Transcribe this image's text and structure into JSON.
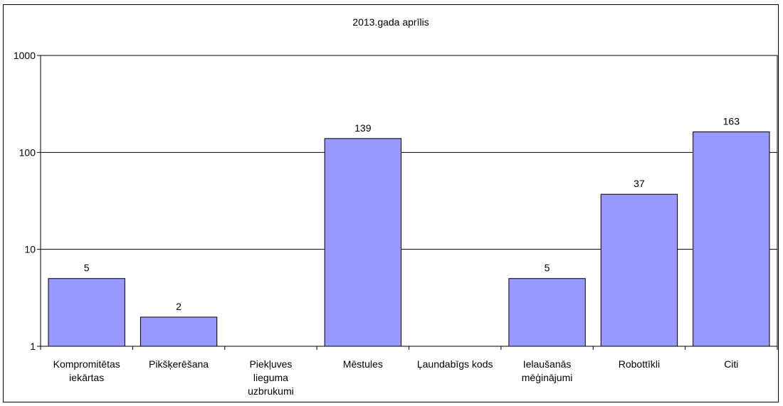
{
  "chart_data": {
    "type": "bar",
    "title": "2013.gada aprīlis",
    "xlabel": "",
    "ylabel": "",
    "y_scale": "log",
    "ylim": [
      1,
      1000
    ],
    "yticks": [
      "1",
      "10",
      "100",
      "1000"
    ],
    "grid": true,
    "legend": "none",
    "bar_color": "#9999ff",
    "categories": [
      [
        "Kompromitētas",
        "iekārtas"
      ],
      [
        "Pikšķerēšana"
      ],
      [
        "Piekļuves",
        "lieguma",
        "uzbrukumi"
      ],
      [
        "Mēstules"
      ],
      [
        "Ļaundabīgs kods"
      ],
      [
        "Ielaušanās",
        "mēģinājumi"
      ],
      [
        "Robottīkli"
      ],
      [
        "Citi"
      ]
    ],
    "values": [
      5,
      2,
      null,
      139,
      null,
      5,
      37,
      163
    ],
    "data_labels": [
      "5",
      "2",
      "",
      "139",
      "",
      "5",
      "37",
      "163"
    ]
  }
}
